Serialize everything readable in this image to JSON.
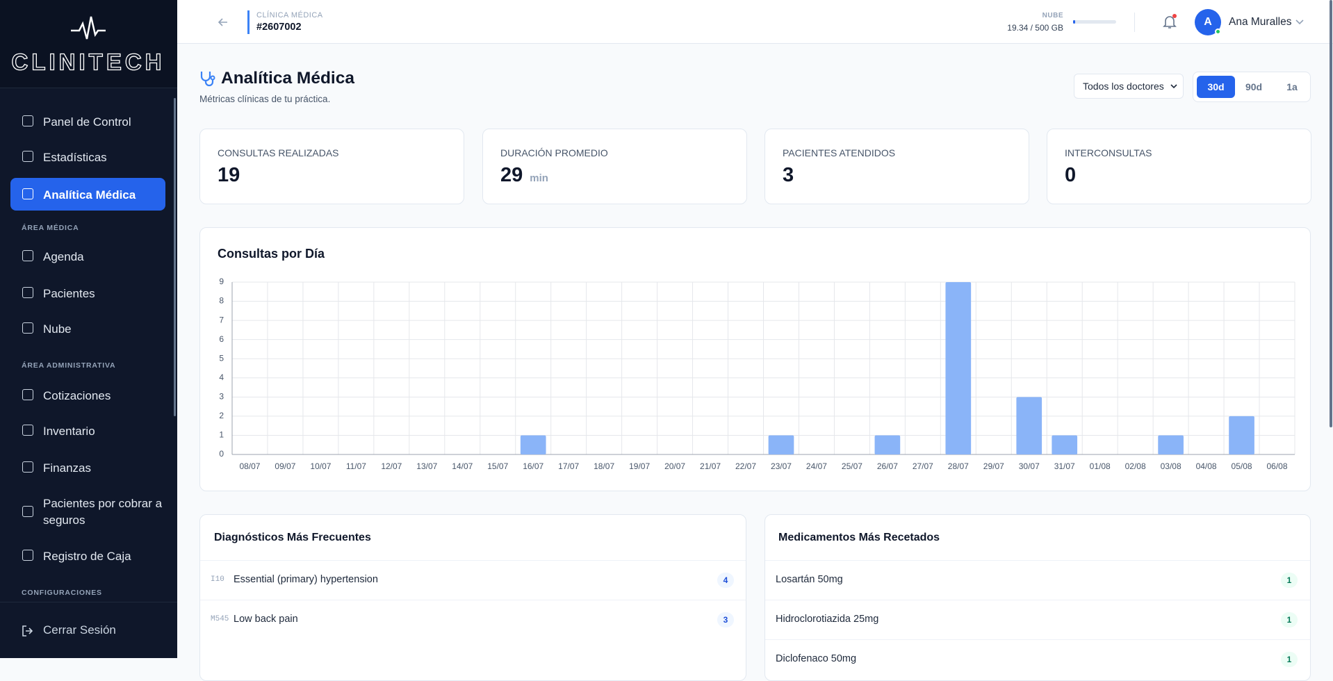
{
  "sidebar": {
    "logo": "CLINITECH",
    "items": [
      {
        "label": "Panel de Control"
      },
      {
        "label": "Estadísticas"
      },
      {
        "label": "Analítica Médica",
        "active": true
      },
      {
        "heading": "ÁREA MÉDICA"
      },
      {
        "label": "Agenda"
      },
      {
        "label": "Pacientes"
      },
      {
        "label": "Nube"
      },
      {
        "heading": "ÁREA ADMINISTRATIVA"
      },
      {
        "label": "Cotizaciones"
      },
      {
        "label": "Inventario"
      },
      {
        "label": "Finanzas"
      },
      {
        "label": "Pacientes por cobrar a seguros"
      },
      {
        "label": "Registro de Caja"
      },
      {
        "heading": "CONFIGURACIONES"
      }
    ],
    "logout": "Cerrar Sesión"
  },
  "header": {
    "org_label": "CLÍNICA MÉDICA",
    "org_id": "#2607002",
    "storage_label": "NUBE",
    "storage_value": "19.34 / 500 GB",
    "avatar": "A",
    "user": "Ana Muralles"
  },
  "page": {
    "title": "Analítica Médica",
    "subtitle": "Métricas clínicas de tu práctica.",
    "doctor_filter": "Todos los doctores",
    "ranges": [
      "30d",
      "90d",
      "1a"
    ],
    "active_range": "30d"
  },
  "stats": [
    {
      "label": "CONSULTAS REALIZADAS",
      "value": 19
    },
    {
      "label": "DURACIÓN PROMEDIO",
      "value": 29,
      "unit": "min"
    },
    {
      "label": "PACIENTES ATENDIDOS",
      "value": 3
    },
    {
      "label": "INTERCONSULTAS",
      "value": 0
    }
  ],
  "chart_data": {
    "type": "bar",
    "title": "Consultas por Día",
    "categories": [
      "08/07",
      "09/07",
      "10/07",
      "11/07",
      "12/07",
      "13/07",
      "14/07",
      "15/07",
      "16/07",
      "17/07",
      "18/07",
      "19/07",
      "20/07",
      "21/07",
      "22/07",
      "23/07",
      "24/07",
      "25/07",
      "26/07",
      "27/07",
      "28/07",
      "29/07",
      "30/07",
      "31/07",
      "01/08",
      "02/08",
      "03/08",
      "04/08",
      "05/08",
      "06/08"
    ],
    "values": [
      0,
      0,
      0,
      0,
      0,
      0,
      0,
      0,
      1,
      0,
      0,
      0,
      0,
      0,
      0,
      1,
      0,
      0,
      1,
      0,
      9,
      0,
      3,
      1,
      0,
      0,
      1,
      0,
      2,
      0
    ],
    "color": "#8ab4f8",
    "ylim": [
      0,
      9
    ],
    "yticks": [
      0,
      1,
      2,
      3,
      4,
      5,
      6,
      7,
      8,
      9
    ],
    "grid": true
  },
  "diagnoses": {
    "title": "Diagnósticos Más Frecuentes",
    "items": [
      {
        "code": "I10",
        "name": "Essential (primary) hypertension",
        "count": 4
      },
      {
        "code": "M545",
        "name": "Low back pain",
        "count": 3
      }
    ]
  },
  "medications": {
    "title": "Medicamentos Más Recetados",
    "items": [
      {
        "name": "Losartán 50mg",
        "count": 1
      },
      {
        "name": "Hidroclorotiazida 25mg",
        "count": 1
      },
      {
        "name": "Diclofenaco 50mg",
        "count": 1
      }
    ]
  }
}
